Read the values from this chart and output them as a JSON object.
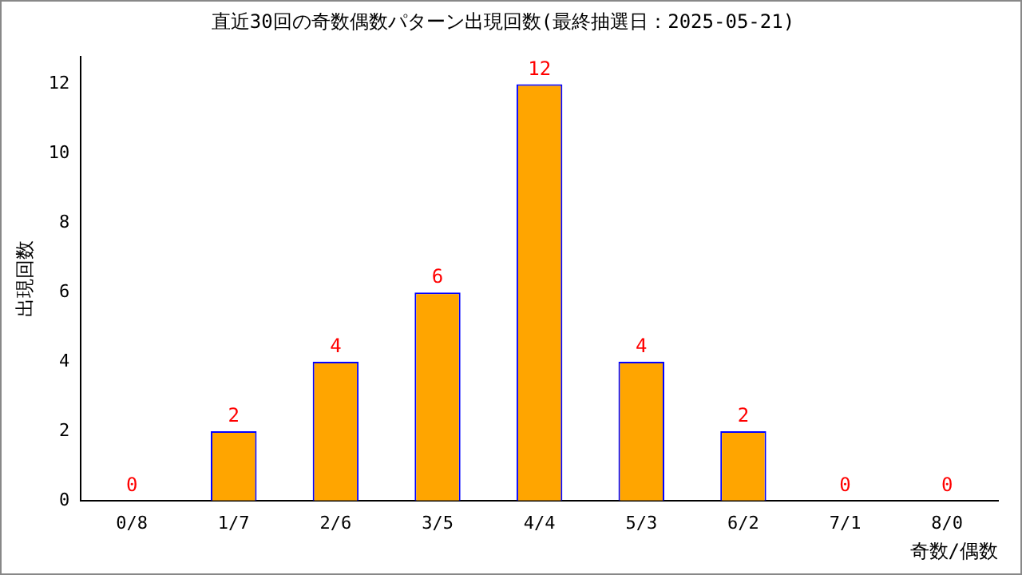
{
  "chart_data": {
    "type": "bar",
    "title": "直近30回の奇数偶数パターン出現回数(最終抽選日：2025-05-21)",
    "xlabel": "奇数/偶数",
    "ylabel": "出現回数",
    "categories": [
      "0/8",
      "1/7",
      "2/6",
      "3/5",
      "4/4",
      "5/3",
      "6/2",
      "7/1",
      "8/0"
    ],
    "values": [
      0,
      2,
      4,
      6,
      12,
      4,
      2,
      0,
      0
    ],
    "color": "#ffa500",
    "ylim": [
      0,
      12.8
    ],
    "yticks": [
      0,
      2,
      4,
      6,
      8,
      10,
      12
    ],
    "grid": false,
    "legend": false,
    "data_labels": true
  }
}
